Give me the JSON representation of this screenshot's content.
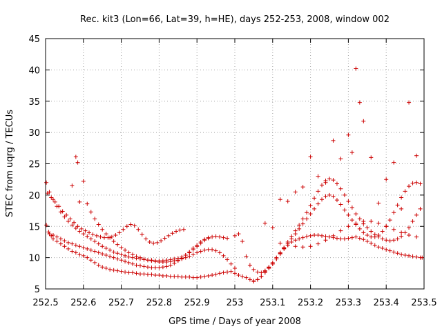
{
  "chart_data": {
    "type": "scatter",
    "title": "Rec. kit3 (Lon=66, Lat=39, h=HE), days 252-253, 2008, window 002",
    "xlabel": "GPS time / Days of year 2008",
    "ylabel": "STEC from uqrg / TECUs",
    "xlim": [
      252.5,
      253.5
    ],
    "ylim": [
      5,
      45
    ],
    "xticks": [
      "252.5",
      "252.6",
      "252.7",
      "252.8",
      "252.9",
      "253",
      "253.1",
      "253.2",
      "253.3",
      "253.4",
      "253.5"
    ],
    "yticks": [
      "5",
      "10",
      "15",
      "20",
      "25",
      "30",
      "35",
      "40",
      "45"
    ],
    "grid": true,
    "marker_color": "#cc0000",
    "marker": "plus",
    "series": [
      {
        "x": [
          252.502,
          252.508,
          252.515,
          252.52,
          252.53,
          252.54,
          252.55,
          252.56,
          252.57,
          252.58,
          252.59,
          252.6,
          252.61,
          252.62,
          252.63,
          252.64,
          252.65,
          252.66,
          252.67,
          252.68,
          252.69,
          252.7,
          252.71,
          252.72,
          252.73,
          252.74,
          252.75,
          252.76,
          252.77,
          252.78,
          252.79,
          252.8,
          252.81,
          252.82,
          252.83,
          252.84,
          252.85,
          252.86,
          252.87,
          252.88,
          252.89,
          252.9,
          252.91,
          252.92,
          252.93,
          252.94,
          252.95,
          252.96,
          252.97,
          252.98,
          252.99,
          253.0,
          253.01,
          253.02,
          253.03,
          253.04,
          253.05,
          253.06,
          253.07,
          253.08,
          253.09,
          253.1,
          253.11,
          253.12,
          253.13,
          253.14,
          253.15,
          253.16,
          253.17,
          253.18,
          253.19,
          253.2,
          253.21,
          253.22,
          253.23,
          253.24,
          253.25,
          253.26,
          253.27,
          253.28,
          253.29,
          253.3,
          253.31,
          253.32,
          253.33,
          253.34,
          253.35,
          253.36,
          253.37,
          253.38,
          253.39,
          253.4,
          253.41,
          253.42,
          253.43,
          253.44,
          253.45,
          253.46,
          253.47,
          253.48,
          253.49,
          253.495
        ],
        "y": [
          15.2,
          14.1,
          13.5,
          13.0,
          12.6,
          12.2,
          11.8,
          11.4,
          11.0,
          10.8,
          10.5,
          10.3,
          10.0,
          9.6,
          9.2,
          8.8,
          8.5,
          8.3,
          8.1,
          8.0,
          7.9,
          7.8,
          7.7,
          7.6,
          7.6,
          7.5,
          7.4,
          7.4,
          7.3,
          7.3,
          7.2,
          7.2,
          7.1,
          7.1,
          7.0,
          7.0,
          7.0,
          6.9,
          6.9,
          6.9,
          6.8,
          6.8,
          6.9,
          7.0,
          7.1,
          7.2,
          7.3,
          7.5,
          7.6,
          7.7,
          7.8,
          7.5,
          7.2,
          7.0,
          6.8,
          6.5,
          6.3,
          6.5,
          7.0,
          7.8,
          8.5,
          9.2,
          10.0,
          10.8,
          11.5,
          12.0,
          12.5,
          12.8,
          13.0,
          13.2,
          13.4,
          13.5,
          13.6,
          13.6,
          13.5,
          13.4,
          13.3,
          13.2,
          13.1,
          13.0,
          13.0,
          13.1,
          13.2,
          13.3,
          13.1,
          12.9,
          12.6,
          12.3,
          12.0,
          11.7,
          11.5,
          11.3,
          11.1,
          10.9,
          10.7,
          10.5,
          10.4,
          10.3,
          10.2,
          10.1,
          10.0,
          10.0
        ]
      },
      {
        "x": [
          252.502,
          252.51,
          252.52,
          252.53,
          252.54,
          252.55,
          252.56,
          252.57,
          252.58,
          252.59,
          252.6,
          252.61,
          252.62,
          252.63,
          252.64,
          252.65,
          252.66,
          252.67,
          252.68,
          252.69,
          252.7,
          252.71,
          252.72,
          252.73,
          252.74,
          252.75,
          252.76,
          252.77,
          252.78,
          252.79,
          252.8,
          252.81,
          252.82,
          252.83,
          252.84,
          252.85,
          252.86,
          252.87,
          252.88,
          252.89,
          252.9,
          252.91,
          252.92,
          252.93,
          252.94,
          252.95,
          252.96,
          252.97,
          252.98
        ],
        "y": [
          22.0,
          20.5,
          19.3,
          18.2,
          17.3,
          16.5,
          15.8,
          15.2,
          14.7,
          14.2,
          13.8,
          13.4,
          13.0,
          12.6,
          12.2,
          11.8,
          11.5,
          11.2,
          10.9,
          10.7,
          10.5,
          10.3,
          10.1,
          10.0,
          9.9,
          9.8,
          9.7,
          9.6,
          9.6,
          9.5,
          9.5,
          9.5,
          9.6,
          9.7,
          9.8,
          9.9,
          10.1,
          10.4,
          10.8,
          11.3,
          11.8,
          12.3,
          12.8,
          13.1,
          13.3,
          13.4,
          13.3,
          13.2,
          13.1
        ]
      },
      {
        "x": [
          252.505,
          252.515,
          252.525,
          252.535,
          252.545,
          252.555,
          252.565,
          252.575,
          252.585,
          252.595,
          252.605,
          252.615,
          252.625,
          252.635,
          252.645,
          252.655,
          252.665,
          252.675,
          252.685,
          252.695,
          252.705,
          252.715,
          252.725,
          252.735,
          252.745,
          252.755,
          252.765,
          252.775,
          252.785,
          252.795,
          252.805,
          252.815,
          252.825,
          252.835,
          252.845,
          252.855,
          252.865
        ],
        "y": [
          20.3,
          19.6,
          18.9,
          18.2,
          17.4,
          16.8,
          16.2,
          15.6,
          15.0,
          14.6,
          14.3,
          14.0,
          13.7,
          13.5,
          13.3,
          13.2,
          13.2,
          13.3,
          13.6,
          14.0,
          14.5,
          15.0,
          15.3,
          15.1,
          14.5,
          13.7,
          13.0,
          12.5,
          12.3,
          12.4,
          12.7,
          13.1,
          13.5,
          13.9,
          14.2,
          14.4,
          14.5
        ]
      },
      {
        "x": [
          252.51,
          252.52,
          252.53,
          252.54,
          252.55,
          252.56,
          252.57,
          252.58,
          252.59,
          252.6,
          252.61,
          252.62,
          252.63,
          252.64,
          252.65,
          252.66,
          252.67,
          252.68,
          252.69,
          252.7,
          252.71,
          252.72,
          252.73,
          252.74,
          252.75,
          252.76,
          252.77,
          252.78,
          252.79,
          252.8,
          252.81,
          252.82,
          252.83,
          252.84,
          252.85,
          252.86,
          252.87,
          252.88,
          252.89,
          252.9,
          252.91,
          252.92,
          252.93
        ],
        "y": [
          13.8,
          13.6,
          13.3,
          13.0,
          12.7,
          12.4,
          12.2,
          12.0,
          11.8,
          11.6,
          11.4,
          11.2,
          11.0,
          10.8,
          10.6,
          10.4,
          10.2,
          10.0,
          9.8,
          9.6,
          9.4,
          9.2,
          9.0,
          8.8,
          8.7,
          8.6,
          8.5,
          8.4,
          8.4,
          8.4,
          8.5,
          8.6,
          8.8,
          9.1,
          9.5,
          9.9,
          10.4,
          10.9,
          11.5,
          12.0,
          12.5,
          12.9,
          13.2
        ]
      },
      {
        "x": [
          252.57,
          252.58,
          252.585,
          252.59,
          252.6,
          252.61,
          252.62,
          252.63,
          252.64,
          252.65,
          252.66,
          252.67,
          252.68,
          252.69,
          252.7,
          252.71,
          252.72,
          252.73,
          252.74,
          252.75,
          252.76,
          252.77,
          252.78,
          252.79,
          252.8,
          252.81,
          252.82,
          252.83,
          252.84,
          252.85,
          252.86,
          252.87,
          252.88,
          252.89,
          252.9,
          252.91,
          252.92,
          252.93,
          252.94,
          252.95,
          252.96,
          252.97,
          252.98,
          252.99,
          253.0
        ],
        "y": [
          21.5,
          26.1,
          25.2,
          18.9,
          22.2,
          18.6,
          17.3,
          16.2,
          15.3,
          14.5,
          13.8,
          13.2,
          12.6,
          12.1,
          11.6,
          11.2,
          10.8,
          10.5,
          10.2,
          10.0,
          9.8,
          9.6,
          9.5,
          9.4,
          9.3,
          9.3,
          9.3,
          9.4,
          9.5,
          9.6,
          9.8,
          10.0,
          10.2,
          10.5,
          10.8,
          11.0,
          11.2,
          11.3,
          11.3,
          11.1,
          10.8,
          10.3,
          9.7,
          9.0,
          8.3
        ]
      },
      {
        "x": [
          253.0,
          253.01,
          253.02,
          253.03,
          253.04,
          253.05,
          253.06,
          253.07,
          253.08,
          253.09,
          253.1,
          253.11,
          253.12,
          253.13,
          253.14,
          253.15,
          253.16,
          253.17,
          253.18,
          253.19,
          253.2,
          253.21,
          253.22,
          253.23,
          253.24,
          253.25,
          253.26,
          253.27,
          253.28,
          253.29,
          253.3,
          253.31,
          253.32,
          253.33,
          253.34,
          253.35,
          253.36,
          253.37,
          253.38,
          253.39,
          253.4,
          253.41,
          253.42,
          253.43,
          253.44,
          253.45,
          253.46,
          253.47,
          253.48,
          253.49
        ],
        "y": [
          13.5,
          13.8,
          12.6,
          10.2,
          8.8,
          8.1,
          7.7,
          7.6,
          7.9,
          8.4,
          9.0,
          9.8,
          10.7,
          11.6,
          12.5,
          13.4,
          14.3,
          15.2,
          16.2,
          17.2,
          18.3,
          19.5,
          20.6,
          21.6,
          22.3,
          22.6,
          22.4,
          21.8,
          21.0,
          20.0,
          19.0,
          18.0,
          17.0,
          16.2,
          15.4,
          14.8,
          14.2,
          13.7,
          13.3,
          13.0,
          12.8,
          12.7,
          12.8,
          13.0,
          13.4,
          14.0,
          14.8,
          15.8,
          16.8,
          17.8
        ]
      },
      {
        "x": [
          253.05,
          253.06,
          253.07,
          253.08,
          253.09,
          253.1,
          253.11,
          253.12,
          253.13,
          253.14,
          253.15,
          253.16,
          253.17,
          253.18,
          253.19,
          253.2,
          253.21,
          253.22,
          253.23,
          253.24,
          253.25,
          253.26,
          253.27,
          253.28,
          253.29,
          253.3,
          253.31,
          253.32,
          253.33,
          253.34,
          253.35,
          253.36,
          253.37,
          253.38,
          253.39,
          253.4,
          253.41,
          253.42,
          253.43,
          253.44,
          253.45,
          253.46,
          253.47,
          253.48,
          253.49
        ],
        "y": [
          6.2,
          6.5,
          7.0,
          7.6,
          8.3,
          9.0,
          9.8,
          10.6,
          11.4,
          12.2,
          13.0,
          13.8,
          14.6,
          15.4,
          16.2,
          17.0,
          17.8,
          18.6,
          19.3,
          19.8,
          20.0,
          19.8,
          19.2,
          18.5,
          17.6,
          16.8,
          16.0,
          15.3,
          14.6,
          14.0,
          13.6,
          13.3,
          13.3,
          13.6,
          14.2,
          15.0,
          16.0,
          17.2,
          18.4,
          19.6,
          20.6,
          21.4,
          21.9,
          22.0,
          21.8
        ]
      },
      {
        "x": [
          253.08,
          253.1,
          253.12,
          253.14,
          253.16,
          253.18,
          253.2,
          253.22,
          253.24,
          253.26,
          253.28,
          253.3,
          253.31,
          253.32,
          253.33,
          253.34,
          253.36,
          253.38,
          253.4,
          253.42,
          253.44,
          253.46,
          253.48
        ],
        "y": [
          15.5,
          14.8,
          19.3,
          19.0,
          20.5,
          21.3,
          26.1,
          23.0,
          22.0,
          28.7,
          25.8,
          29.6,
          26.8,
          40.2,
          34.8,
          31.8,
          26.0,
          18.7,
          22.5,
          25.2,
          17.8,
          34.8,
          26.3
        ]
      },
      {
        "x": [
          253.12,
          253.14,
          253.16,
          253.18,
          253.2,
          253.22,
          253.24,
          253.26,
          253.28,
          253.3,
          253.32,
          253.34,
          253.36,
          253.38,
          253.4,
          253.42,
          253.44,
          253.46,
          253.48
        ],
        "y": [
          12.3,
          12.0,
          11.8,
          11.7,
          11.8,
          12.2,
          12.8,
          13.5,
          14.3,
          15.0,
          15.5,
          15.8,
          15.8,
          15.5,
          15.0,
          14.5,
          14.0,
          13.6,
          13.3
        ]
      }
    ]
  }
}
